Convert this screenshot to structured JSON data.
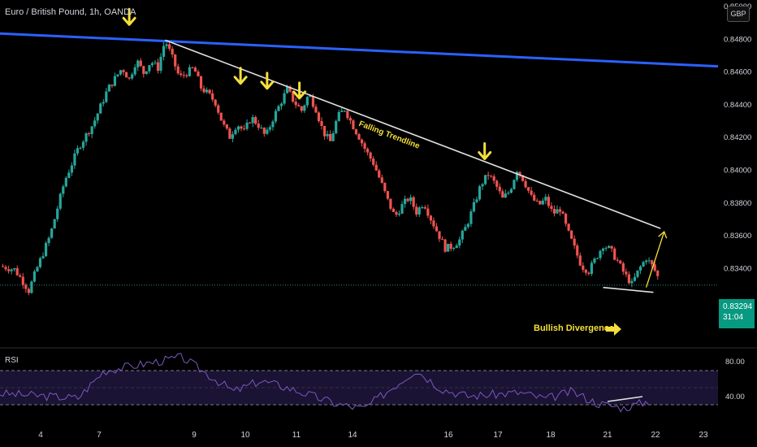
{
  "header": {
    "title": "Euro / British Pound, 1h, OANDA"
  },
  "currency_button": "GBP",
  "current_price": {
    "value": "0.83294",
    "countdown": "31:04",
    "color": "#089981"
  },
  "colors": {
    "up": "#26a69a",
    "down": "#ef5350",
    "trendline_blue": "#2962ff",
    "annotation": "#f5df3a",
    "rsi": "#7e57c2"
  },
  "annotations": {
    "falling_trendline": "Falling Trendline",
    "bullish_divergence": "Bullish Divergence"
  },
  "rsi_panel": {
    "title": "RSI",
    "levels": [
      "80.00",
      "40.00"
    ]
  },
  "chart_data": {
    "type": "candlestick",
    "title": "Euro / British Pound, 1h, OANDA",
    "y_ticks": [
      "0.85000",
      "0.84800",
      "0.84600",
      "0.84400",
      "0.84200",
      "0.84000",
      "0.83800",
      "0.83600",
      "0.83400",
      "0.83294"
    ],
    "ylim": [
      0.8305,
      0.85
    ],
    "x_ticks": [
      "4",
      "7",
      "9",
      "10",
      "11",
      "14",
      "16",
      "17",
      "18",
      "21",
      "22",
      "23"
    ],
    "close_path": [
      [
        0,
        0.8341
      ],
      [
        2,
        0.8339
      ],
      [
        3,
        0.8333
      ],
      [
        4,
        0.8326
      ],
      [
        5,
        0.8338
      ],
      [
        7,
        0.836
      ],
      [
        9,
        0.8393
      ],
      [
        11,
        0.8414
      ],
      [
        13,
        0.8428
      ],
      [
        15,
        0.8449
      ],
      [
        17,
        0.8462
      ],
      [
        18,
        0.8455
      ],
      [
        19,
        0.8467
      ],
      [
        20,
        0.8459
      ],
      [
        21,
        0.8466
      ],
      [
        22,
        0.8462
      ],
      [
        23,
        0.8479
      ],
      [
        24,
        0.8468
      ],
      [
        25,
        0.8456
      ],
      [
        27,
        0.8462
      ],
      [
        28,
        0.845
      ],
      [
        29,
        0.8446
      ],
      [
        30,
        0.8441
      ],
      [
        31,
        0.8428
      ],
      [
        32,
        0.842
      ],
      [
        33,
        0.8428
      ],
      [
        34,
        0.8423
      ],
      [
        35,
        0.8432
      ],
      [
        36,
        0.8427
      ],
      [
        37,
        0.842
      ],
      [
        38,
        0.8431
      ],
      [
        39,
        0.844
      ],
      [
        40,
        0.8449
      ],
      [
        41,
        0.8441
      ],
      [
        42,
        0.8436
      ],
      [
        43,
        0.8446
      ],
      [
        44,
        0.8437
      ],
      [
        45,
        0.8423
      ],
      [
        46,
        0.8417
      ],
      [
        47,
        0.8432
      ],
      [
        48,
        0.8437
      ],
      [
        49,
        0.8428
      ],
      [
        50,
        0.842
      ],
      [
        51,
        0.8411
      ],
      [
        52,
        0.8404
      ],
      [
        53,
        0.8393
      ],
      [
        54,
        0.8381
      ],
      [
        55,
        0.8371
      ],
      [
        56,
        0.8378
      ],
      [
        57,
        0.8383
      ],
      [
        58,
        0.8374
      ],
      [
        59,
        0.838
      ],
      [
        60,
        0.837
      ],
      [
        61,
        0.8361
      ],
      [
        62,
        0.8352
      ],
      [
        63,
        0.8353
      ],
      [
        64,
        0.8357
      ],
      [
        65,
        0.8366
      ],
      [
        66,
        0.8378
      ],
      [
        67,
        0.8391
      ],
      [
        68,
        0.8397
      ],
      [
        69,
        0.8391
      ],
      [
        70,
        0.8382
      ],
      [
        71,
        0.8387
      ],
      [
        72,
        0.84
      ],
      [
        73,
        0.8393
      ],
      [
        74,
        0.8383
      ],
      [
        75,
        0.8378
      ],
      [
        76,
        0.8382
      ],
      [
        77,
        0.8373
      ],
      [
        78,
        0.8376
      ],
      [
        79,
        0.8363
      ],
      [
        80,
        0.8352
      ],
      [
        81,
        0.8341
      ],
      [
        82,
        0.8338
      ],
      [
        83,
        0.8346
      ],
      [
        84,
        0.8354
      ],
      [
        85,
        0.8351
      ],
      [
        86,
        0.8344
      ],
      [
        87,
        0.8336
      ],
      [
        88,
        0.833
      ],
      [
        89,
        0.8339
      ],
      [
        90,
        0.8346
      ],
      [
        91,
        0.834
      ],
      [
        92,
        0.8331
      ]
    ],
    "falling_trendline": [
      [
        23,
        0.8479
      ],
      [
        92,
        0.8364
      ]
    ],
    "blue_trendline": [
      [
        0,
        0.8483
      ],
      [
        100,
        0.8463
      ]
    ],
    "rsi": {
      "ylim": [
        25,
        95
      ],
      "levels": [
        70,
        50,
        30
      ],
      "points": [
        [
          0,
          50
        ],
        [
          3,
          45
        ],
        [
          4,
          75
        ],
        [
          7,
          90
        ],
        [
          9,
          52
        ],
        [
          10,
          64
        ],
        [
          11,
          57
        ],
        [
          13,
          38
        ],
        [
          14,
          33
        ],
        [
          16,
          76
        ],
        [
          17,
          55
        ],
        [
          18,
          47
        ],
        [
          20,
          51
        ],
        [
          21,
          44
        ],
        [
          22,
          52
        ],
        [
          23,
          39
        ],
        [
          24,
          34
        ],
        [
          25,
          42
        ]
      ]
    }
  }
}
